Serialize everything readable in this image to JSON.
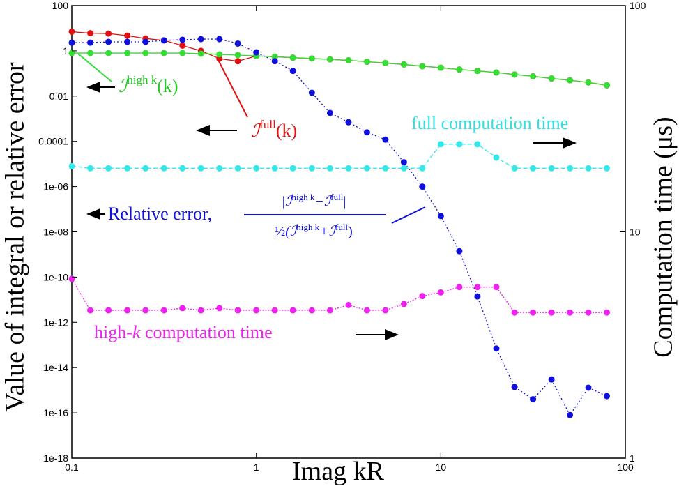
{
  "chart_data": {
    "type": "line",
    "xlabel": "Imag kR",
    "ylabel": "Value of integral or relative error",
    "y2label": "Computation time (μs)",
    "xscale": "log",
    "yscale": "log",
    "y2scale": "log",
    "xlim": [
      0.1,
      100
    ],
    "xticks": [
      0.1,
      1,
      10,
      100
    ],
    "ylim": [
      1e-18,
      100
    ],
    "yticks": [
      100,
      1,
      0.01,
      0.0001,
      {
        "value": 1e-06,
        "label": "1e-06"
      },
      {
        "value": 1e-08,
        "label": "1e-08"
      },
      {
        "value": 1e-10,
        "label": "1e-10"
      },
      {
        "value": 1e-12,
        "label": "1e-12"
      },
      {
        "value": 1e-14,
        "label": "1e-14"
      },
      {
        "value": 1e-16,
        "label": "1e-16"
      },
      {
        "value": 1e-18,
        "label": "1e-18"
      }
    ],
    "y2lim": [
      1,
      100
    ],
    "y2ticks": [
      1,
      10,
      100
    ],
    "x": [
      0.1,
      0.126,
      0.158,
      0.2,
      0.251,
      0.316,
      0.398,
      0.501,
      0.631,
      0.794,
      1,
      1.26,
      1.58,
      2,
      2.51,
      3.16,
      3.98,
      5.01,
      6.31,
      7.94,
      10,
      12.6,
      15.8,
      20,
      25.1,
      31.6,
      39.8,
      50.1,
      63.1,
      79.4
    ],
    "series": [
      {
        "color": "#e01010",
        "dash": "none",
        "values": [
          7,
          6,
          5.8,
          4.7,
          3.5,
          2.9,
          1.7,
          1.0,
          0.45,
          0.35,
          0.6,
          0.55,
          0.5,
          0.46,
          0.42,
          0.38,
          0.33,
          0.29,
          0.25,
          0.21,
          0.18,
          0.15,
          0.13,
          0.11,
          0.09,
          0.075,
          0.06,
          0.05,
          0.04,
          0.03
        ]
      },
      {
        "color": "#33dd33",
        "dash": "none",
        "values": [
          0.8,
          0.8,
          0.8,
          0.8,
          0.8,
          0.8,
          0.8,
          0.75,
          0.7,
          0.65,
          0.6,
          0.55,
          0.5,
          0.46,
          0.42,
          0.38,
          0.33,
          0.29,
          0.25,
          0.21,
          0.18,
          0.15,
          0.13,
          0.11,
          0.09,
          0.075,
          0.06,
          0.05,
          0.04,
          0.03
        ]
      },
      {
        "color": "#1010dd",
        "dash": "2 3",
        "values": [
          2.3,
          2.3,
          2.5,
          2.5,
          2.5,
          2.9,
          3.1,
          3.3,
          3.3,
          2.1,
          0.86,
          0.35,
          0.13,
          0.014,
          0.0018,
          0.0007,
          0.00025,
          0.00012,
          1.2e-05,
          1e-06,
          5e-08,
          1.4e-09,
          1.4e-11,
          7e-14,
          1.4e-15,
          4e-16,
          3e-15,
          8e-17,
          1.3e-15,
          5.5e-16
        ]
      },
      {
        "color": "#33e8e8",
        "dash": "6 3",
        "axis": "y2",
        "values": [
          19.5,
          19.1,
          19.1,
          19.1,
          19.1,
          19.1,
          19.1,
          19.1,
          19.1,
          19.1,
          19.1,
          19.1,
          19.1,
          19.1,
          19.1,
          19.1,
          19.1,
          19.1,
          19.1,
          19.1,
          24.4,
          24.4,
          24.4,
          21.3,
          19.1,
          19.1,
          19.1,
          19.1,
          19.1,
          19.1
        ]
      },
      {
        "color": "#ee22ee",
        "dash": "2 2",
        "axis": "y2",
        "values": [
          6.2,
          4.5,
          4.5,
          4.5,
          4.5,
          4.5,
          4.6,
          4.5,
          4.6,
          4.5,
          4.5,
          4.5,
          4.5,
          4.5,
          4.5,
          4.75,
          4.5,
          4.5,
          4.8,
          5.2,
          5.4,
          5.7,
          5.7,
          5.7,
          4.4,
          4.4,
          4.4,
          4.4,
          4.4,
          4.4
        ]
      }
    ],
    "annotations": {
      "green": [
        "ℐ",
        "high k",
        "(k)"
      ],
      "red": [
        "ℐ",
        "full",
        "(k)"
      ],
      "cyan": "full computation time",
      "magenta": [
        "high-",
        "k",
        " computation time"
      ],
      "blue_label": "Relative error,",
      "blue_numerator": [
        "|ℐ",
        "high k",
        "−ℐ",
        "full",
        "|"
      ],
      "blue_denominator": [
        "½",
        "(ℐ",
        "high k",
        "+ℐ",
        "full",
        ")"
      ]
    }
  }
}
